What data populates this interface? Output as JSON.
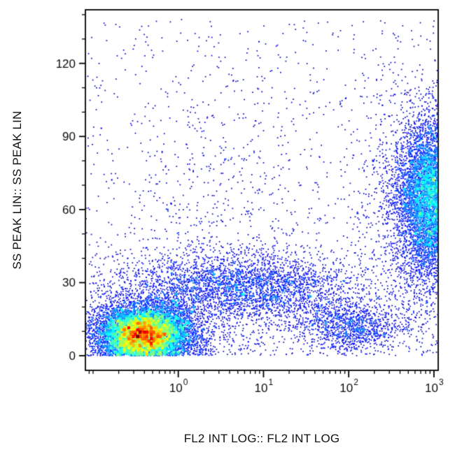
{
  "figure": {
    "background": "#ffffff",
    "frame_color": "#000000"
  },
  "chart_data": {
    "type": "scatter",
    "subtype": "flow-cytometry-density-plot",
    "title": "",
    "xlabel": "FL2 INT LOG:: FL2 INT LOG",
    "ylabel": "SS PEAK LIN:: SS PEAK LIN",
    "x_scale": "log10",
    "x_range_log10": [
      -1.09,
      3.05
    ],
    "ylim": [
      -6,
      142
    ],
    "x_tick_base": "10",
    "x_major_tick_exponents": [
      0,
      1,
      2,
      3
    ],
    "y_ticks": [
      0,
      30,
      60,
      90,
      120
    ],
    "y_minor_tick_step": 10,
    "grid": false,
    "legend": false,
    "colormap": "jet-density",
    "point_color_sparse": "#0000c8",
    "populations": [
      {
        "name": "main-low-scatter-population",
        "dist": "gaussian",
        "count": 9000,
        "center_log10_x": -0.4,
        "center_y": 9,
        "sigma_log10_x": 0.27,
        "sigma_y": 5.5
      },
      {
        "name": "bright-fl2-population",
        "dist": "gaussian",
        "count": 7000,
        "center_log10_x": 3.0,
        "center_y": 65,
        "sigma_log10_x": 0.22,
        "sigma_y": 16
      },
      {
        "name": "mid-band-population",
        "dist": "gaussian",
        "count": 3000,
        "center_log10_x": 0.8,
        "center_y": 28,
        "sigma_log10_x": 0.7,
        "sigma_y": 7
      },
      {
        "name": "low-mid-right-population",
        "dist": "gaussian",
        "count": 1200,
        "center_log10_x": 2.0,
        "center_y": 12,
        "sigma_log10_x": 0.35,
        "sigma_y": 5
      },
      {
        "name": "main-halo-scatter",
        "dist": "gaussian",
        "count": 1600,
        "center_log10_x": -0.3,
        "center_y": 14,
        "sigma_log10_x": 0.55,
        "sigma_y": 13
      },
      {
        "name": "upper-left-sparse-scatter",
        "dist": "gaussian",
        "count": 500,
        "center_log10_x": 0.5,
        "center_y": 50,
        "sigma_log10_x": 0.6,
        "sigma_y": 28
      },
      {
        "name": "bright-halo-scatter",
        "dist": "gaussian",
        "count": 1500,
        "center_log10_x": 2.85,
        "center_y": 58,
        "sigma_log10_x": 0.38,
        "sigma_y": 28
      },
      {
        "name": "background-scatter",
        "dist": "uniform",
        "count": 900
      }
    ]
  }
}
